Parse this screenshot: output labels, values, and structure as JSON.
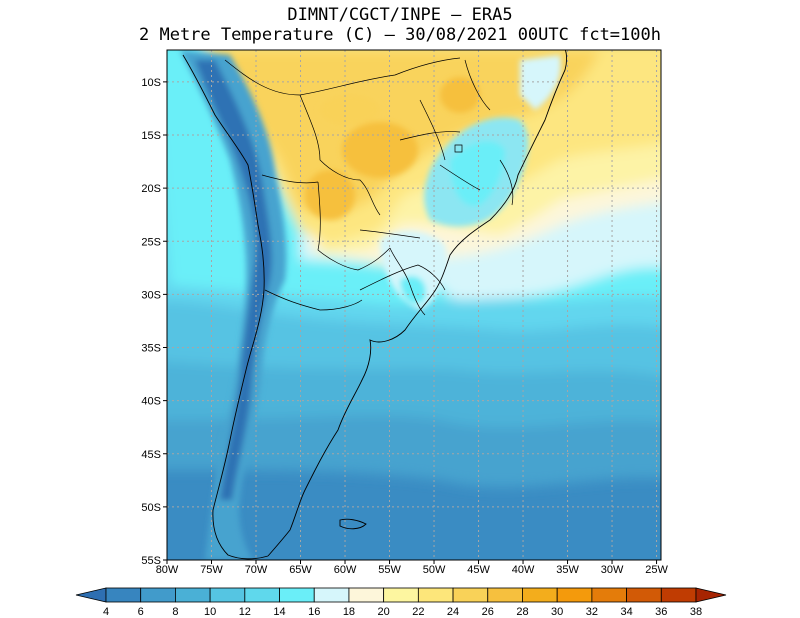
{
  "title": {
    "line1": "DIMNT/CGCT/INPE  –  ERA5",
    "line2": "2 Metre Temperature (C) –   30/08/2021 00UTC fct=100h"
  },
  "map": {
    "lat_labels": [
      "10S",
      "15S",
      "20S",
      "25S",
      "30S",
      "35S",
      "40S",
      "45S",
      "50S",
      "55S"
    ],
    "lon_labels": [
      "80W",
      "75W",
      "70W",
      "65W",
      "60W",
      "55W",
      "50W",
      "45W",
      "40W",
      "35W",
      "30W",
      "25W"
    ],
    "lat_values": [
      -10,
      -15,
      -20,
      -25,
      -30,
      -35,
      -40,
      -45,
      -50,
      -55
    ],
    "lon_values": [
      -80,
      -75,
      -70,
      -65,
      -60,
      -55,
      -50,
      -45,
      -40,
      -35,
      -30,
      -25
    ],
    "lat_range": [
      -55,
      -7
    ],
    "lon_range": [
      -80,
      -24.5
    ]
  },
  "colorbar": {
    "labels": [
      "4",
      "6",
      "8",
      "10",
      "12",
      "14",
      "16",
      "18",
      "20",
      "22",
      "24",
      "26",
      "28",
      "30",
      "32",
      "34",
      "36",
      "38"
    ],
    "colors": [
      "#2e6fb2",
      "#3785bf",
      "#419bcb",
      "#4ab0d6",
      "#55c5e2",
      "#5fd8ec",
      "#6aeef8",
      "#d6f6fb",
      "#fdf6da",
      "#fdf6a0",
      "#fde67a",
      "#f9d258",
      "#f6c03e",
      "#f3ad1c",
      "#f49a0c",
      "#e47c0a",
      "#d25a06",
      "#c03c02",
      "#a62402"
    ]
  }
}
